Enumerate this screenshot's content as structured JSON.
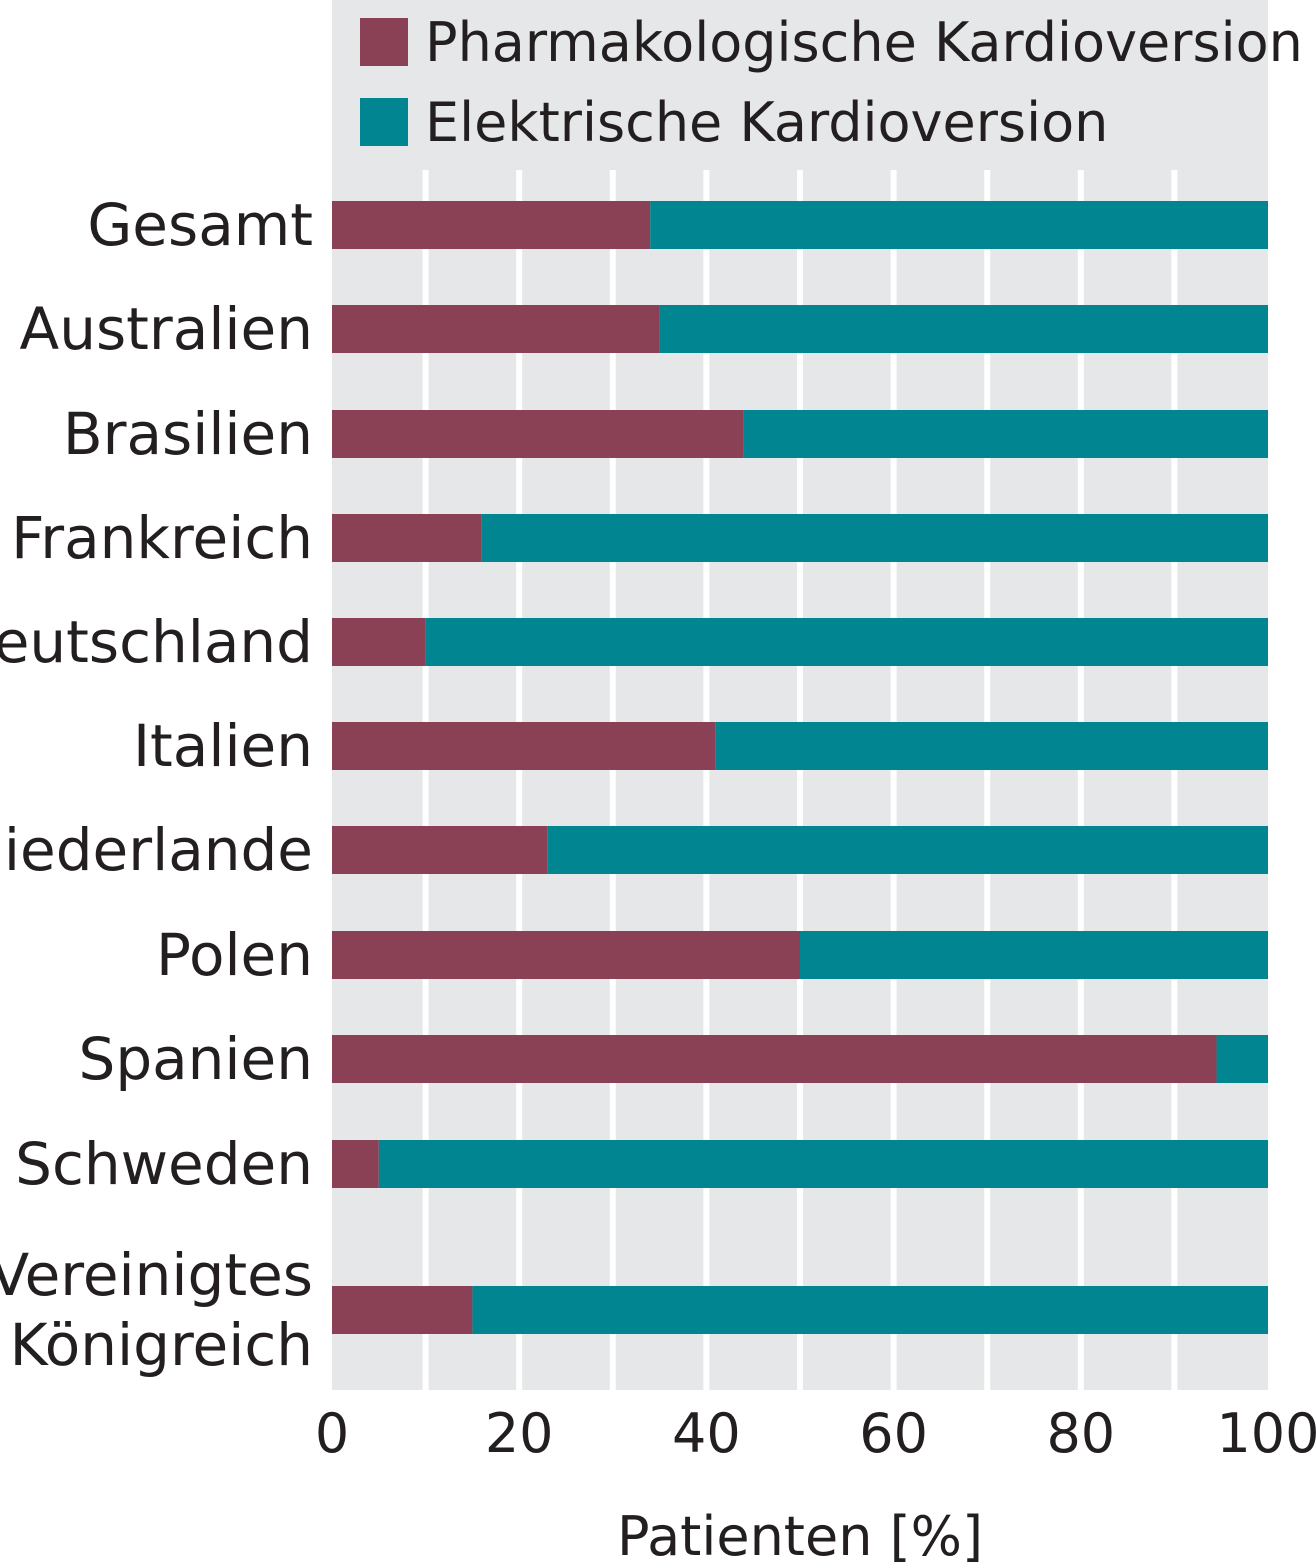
{
  "chart_data": {
    "type": "bar",
    "orientation": "horizontal",
    "stacked": true,
    "categories": [
      [
        "Gesamt"
      ],
      [
        "Australien"
      ],
      [
        "Brasilien"
      ],
      [
        "Frankreich"
      ],
      [
        "Deutschland"
      ],
      [
        "Italien"
      ],
      [
        "Niederlande"
      ],
      [
        "Polen"
      ],
      [
        "Spanien"
      ],
      [
        "Schweden"
      ],
      [
        "Vereinigtes",
        "Königreich"
      ]
    ],
    "series": [
      {
        "name": "Pharmakologische Kardioversion",
        "color": "#8b4155",
        "values": [
          34,
          35,
          44,
          16,
          10,
          41,
          23,
          50,
          94.5,
          5,
          15
        ]
      },
      {
        "name": "Elektrische Kardioversion",
        "color": "#008591",
        "values": [
          66,
          65,
          56,
          84,
          90,
          59,
          77,
          50,
          5.5,
          95,
          85
        ]
      }
    ],
    "xlabel": "Patienten [%]",
    "xlim": [
      0,
      100
    ],
    "xticks": [
      "0",
      "20",
      "40",
      "60",
      "80",
      "100"
    ],
    "grid": true,
    "legend_position": "top-right",
    "plot_background": "#e6e7e8"
  }
}
